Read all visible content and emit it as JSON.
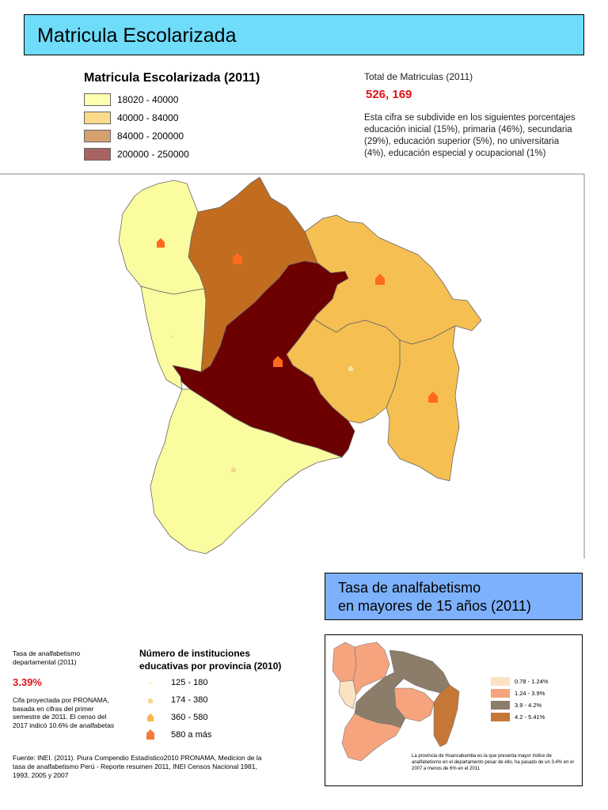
{
  "header": {
    "title": "Matricula Escolarizada"
  },
  "legend": {
    "title": "Matricula Escolarizada (2011)",
    "classes": [
      {
        "label": "18020 - 40000",
        "color": "#ffffb2"
      },
      {
        "label": "40000 - 84000",
        "color": "#fcdb8b"
      },
      {
        "label": "84000 - 200000",
        "color": "#d4a070"
      },
      {
        "label": "200000 - 250000",
        "color": "#a86262"
      }
    ]
  },
  "total": {
    "label": "Total de Matriculas (2011)",
    "value": "526, 169",
    "description": "Esta cifra se subdivide en los siguientes porcentajes educación inicial (15%), primaria (46%), secundaria (29%), educación superior (5%), no universitaria (4%), educación especial y ocupacional (1%)"
  },
  "map_colors": {
    "class_1": "#fbfb9f",
    "class_2": "#f6bf52",
    "class_3": "#c26c1f",
    "class_4": "#6d0000",
    "icon": "#ff6a1f"
  },
  "tasa": {
    "line1": "Tasa de analfabetismo",
    "line2": "en mayores de 15 años (2011)"
  },
  "inset_legend": [
    {
      "label": "0.78 - 1.24%",
      "color": "#fbe2c0"
    },
    {
      "label": "1.24 - 3.9%",
      "color": "#f6a47e"
    },
    {
      "label": "3.9 - 4.2%",
      "color": "#8c7c6a"
    },
    {
      "label": "4.2 - 5.41%",
      "color": "#c57836"
    }
  ],
  "inset_note": "La provincia de Huancabamba es la que presenta mayor índice de analfabetismo en el departamento pesar de ello, ha pasado de un 3.4% en el 2007 a menos de 6% en el 2011",
  "departmental": {
    "label": "Tasa de analfabetismo departamental (2011)",
    "value": "3.39%",
    "note": "Cifa proyectada por PRONAMA, basada en cifras del primer semestre de 2011. El censo del 2017 indicó 10.6% de analfabetas"
  },
  "institutions": {
    "title_line1": "Número de instituciones",
    "title_line2": "educativas por provincia (2010)",
    "classes": [
      {
        "label": "125 - 180"
      },
      {
        "label": "174 - 380"
      },
      {
        "label": "360 - 580"
      },
      {
        "label": "580 a más"
      }
    ]
  },
  "source": "Fuente: INEI. (2011). Piura Compendio Estadístico2010 PRONAMA, Medicion de la tasa de analfabetismo Perú - Reporte resumen 2011, INEI Censos Nacional 1981, 1993, 2005 y 2007"
}
